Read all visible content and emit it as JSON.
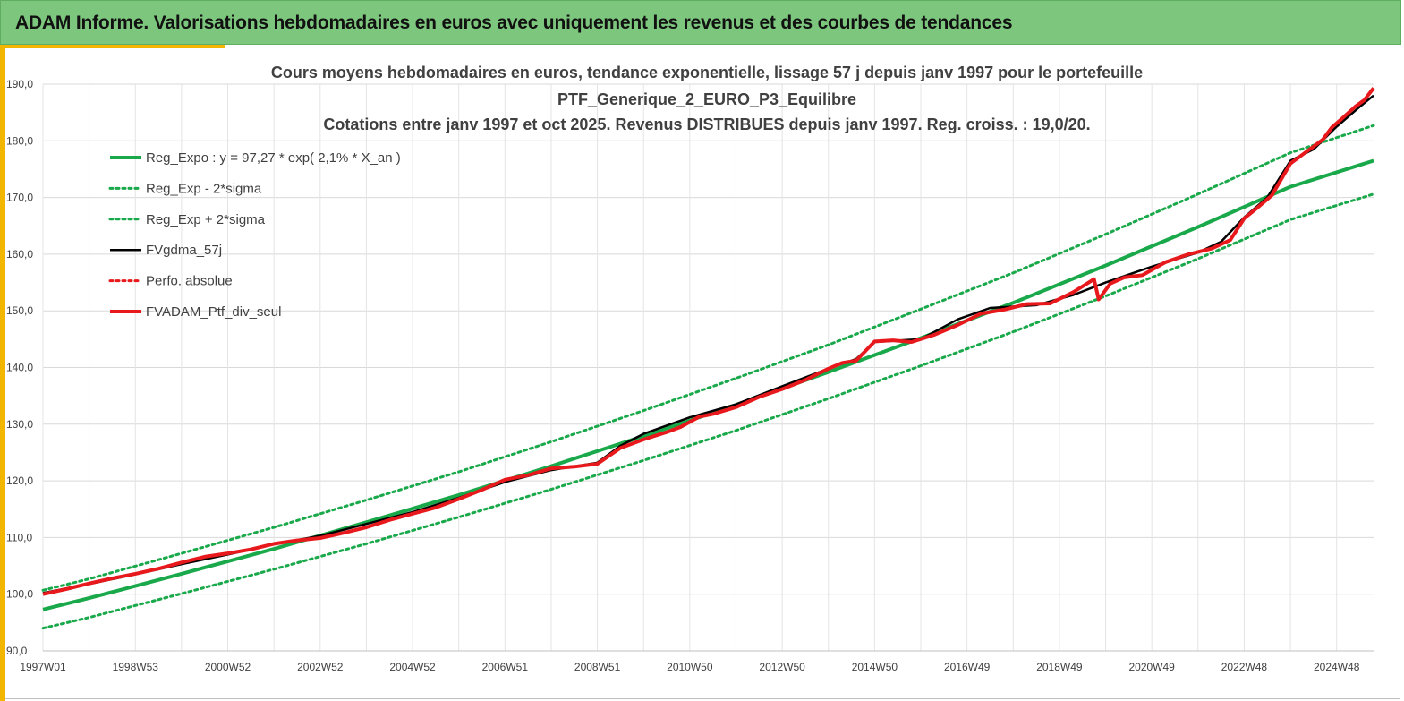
{
  "header": {
    "title": "ADAM Informe. Valorisations hebdomadaires en euros avec uniquement les revenus et des courbes de tendances"
  },
  "colors": {
    "header_bg": "#7dc67d",
    "accent": "#f2b600",
    "regression": "#19a84a",
    "smoothed": "#000000",
    "portfolio": "#e8191c"
  },
  "chart_data": {
    "type": "line",
    "title_lines": [
      "Cours moyens hebdomadaires  en euros, tendance exponentielle, lissage 57 j depuis janv 1997 pour le portefeuille",
      "PTF_Generique_2_EURO_P3_Equilibre",
      "Cotations  entre janv 1997 et oct 2025. Revenus DISTRIBUES depuis janv 1997. Reg. croiss. : 19,0/20."
    ],
    "ylim": [
      90,
      190
    ],
    "y_ticks": [
      "90,0",
      "100,0",
      "110,0",
      "120,0",
      "130,0",
      "140,0",
      "150,0",
      "160,0",
      "170,0",
      "180,0",
      "190,0"
    ],
    "x_tick_labels": [
      "1997W01",
      "1998W53",
      "2000W52",
      "2002W52",
      "2004W52",
      "2006W51",
      "2008W51",
      "2010W50",
      "2012W50",
      "2014W50",
      "2016W49",
      "2018W49",
      "2020W49",
      "2022W48",
      "2024W48"
    ],
    "x_tick_years": [
      1997.0,
      1999.0,
      2001.0,
      2003.0,
      2005.0,
      2007.0,
      2009.0,
      2011.0,
      2013.0,
      2015.0,
      2017.0,
      2019.0,
      2021.0,
      2023.0,
      2025.0
    ],
    "xlim": [
      1997.0,
      2025.8
    ],
    "grid": true,
    "legend_position": "top-left",
    "series": [
      {
        "name": "Reg_Expo : y = 97,27 * exp( 2,1% *  X_an )",
        "style": "solid-thick",
        "color": "#19a84a",
        "x": [
          1997.0,
          1998.0,
          2000.0,
          2002.0,
          2004.0,
          2006.0,
          2008.0,
          2010.0,
          2012.0,
          2014.0,
          2016.0,
          2018.0,
          2020.0,
          2022.0,
          2024.0,
          2025.8
        ],
        "y": [
          97.3,
          99.3,
          103.6,
          108.0,
          112.7,
          117.5,
          122.6,
          127.9,
          133.4,
          139.2,
          145.2,
          151.4,
          158.0,
          164.8,
          171.9,
          176.5
        ]
      },
      {
        "name": "Reg_Exp - 2*sigma",
        "style": "dotted",
        "color": "#19a84a",
        "x": [
          1997.0,
          1998.0,
          2000.0,
          2002.0,
          2004.0,
          2006.0,
          2008.0,
          2010.0,
          2012.0,
          2014.0,
          2016.0,
          2018.0,
          2020.0,
          2022.0,
          2024.0,
          2025.8
        ],
        "y": [
          94.0,
          95.9,
          100.1,
          104.4,
          108.9,
          113.6,
          118.5,
          123.6,
          128.9,
          134.5,
          140.3,
          146.3,
          152.6,
          159.2,
          166.1,
          170.6
        ]
      },
      {
        "name": "Reg_Exp + 2*sigma",
        "style": "dotted",
        "color": "#19a84a",
        "x": [
          1997.0,
          1998.0,
          2000.0,
          2002.0,
          2004.0,
          2006.0,
          2008.0,
          2010.0,
          2012.0,
          2014.0,
          2016.0,
          2018.0,
          2020.0,
          2022.0,
          2024.0,
          2025.8
        ],
        "y": [
          100.7,
          102.7,
          107.2,
          111.8,
          116.6,
          121.6,
          126.9,
          132.4,
          138.1,
          144.0,
          150.3,
          156.7,
          163.5,
          170.6,
          177.9,
          182.7
        ]
      },
      {
        "name": "FVgdma_57j",
        "style": "solid",
        "color": "#000000",
        "x": [
          1997.0,
          1998.0,
          1999.0,
          2000.0,
          2001.0,
          2002.0,
          2003.0,
          2004.0,
          2005.0,
          2006.0,
          2007.0,
          2008.0,
          2009.0,
          2009.5,
          2010.0,
          2011.0,
          2012.0,
          2013.0,
          2014.0,
          2014.6,
          2015.0,
          2016.0,
          2016.8,
          2017.5,
          2018.5,
          2019.3,
          2020.0,
          2021.0,
          2022.0,
          2022.5,
          2023.0,
          2023.5,
          2024.0,
          2024.5,
          2025.0,
          2025.5,
          2025.8
        ],
        "y": [
          100.2,
          101.8,
          103.5,
          105.3,
          107.0,
          108.8,
          110.3,
          112.4,
          114.5,
          117.0,
          119.8,
          121.9,
          123.2,
          126.2,
          128.3,
          131.2,
          133.5,
          136.7,
          139.8,
          141.5,
          144.5,
          145.0,
          148.5,
          150.5,
          151.0,
          152.8,
          155.0,
          157.8,
          160.3,
          162.2,
          166.5,
          170.0,
          176.5,
          178.5,
          182.5,
          186.0,
          188.0
        ]
      },
      {
        "name": "Perfo. absolue",
        "style": "dotted",
        "color": "#e8191c",
        "x": [
          1997.0,
          2025.8
        ],
        "y": [
          100.0,
          189.0
        ]
      },
      {
        "name": "FVADAM_Ptf_div_seul",
        "style": "solid-thick",
        "color": "#e8191c",
        "x": [
          1997.0,
          1997.5,
          1998.0,
          1998.5,
          1999.0,
          1999.5,
          2000.0,
          2000.5,
          2001.0,
          2001.5,
          2002.0,
          2002.5,
          2003.0,
          2003.5,
          2004.0,
          2004.5,
          2005.0,
          2005.5,
          2006.0,
          2006.5,
          2007.0,
          2007.5,
          2008.0,
          2008.5,
          2009.0,
          2009.5,
          2010.0,
          2010.5,
          2010.8,
          2011.2,
          2011.5,
          2012.0,
          2012.5,
          2013.0,
          2013.5,
          2014.0,
          2014.3,
          2014.6,
          2015.0,
          2015.4,
          2015.8,
          2016.3,
          2016.8,
          2017.3,
          2017.8,
          2018.3,
          2018.8,
          2019.3,
          2019.75,
          2019.85,
          2020.1,
          2020.4,
          2020.8,
          2021.3,
          2021.8,
          2022.3,
          2022.7,
          2023.0,
          2023.3,
          2023.6,
          2024.0,
          2024.3,
          2024.7,
          2024.9,
          2025.1,
          2025.4,
          2025.6,
          2025.8
        ],
        "y": [
          100.0,
          100.9,
          101.9,
          102.8,
          103.6,
          104.5,
          105.6,
          106.6,
          107.2,
          107.9,
          108.9,
          109.5,
          109.9,
          110.8,
          111.8,
          113.1,
          114.2,
          115.3,
          116.8,
          118.4,
          120.2,
          121.0,
          122.2,
          122.5,
          123.0,
          125.8,
          127.3,
          128.6,
          129.5,
          131.3,
          131.8,
          133.0,
          134.8,
          136.2,
          137.8,
          139.8,
          140.8,
          141.2,
          144.6,
          144.8,
          144.5,
          145.8,
          147.5,
          149.5,
          150.2,
          151.2,
          151.3,
          153.3,
          155.6,
          152.0,
          154.8,
          155.9,
          156.3,
          158.6,
          160.0,
          161.0,
          162.5,
          166.3,
          168.3,
          170.4,
          176.0,
          177.8,
          180.2,
          182.4,
          183.8,
          186.0,
          187.2,
          189.3
        ]
      }
    ]
  }
}
